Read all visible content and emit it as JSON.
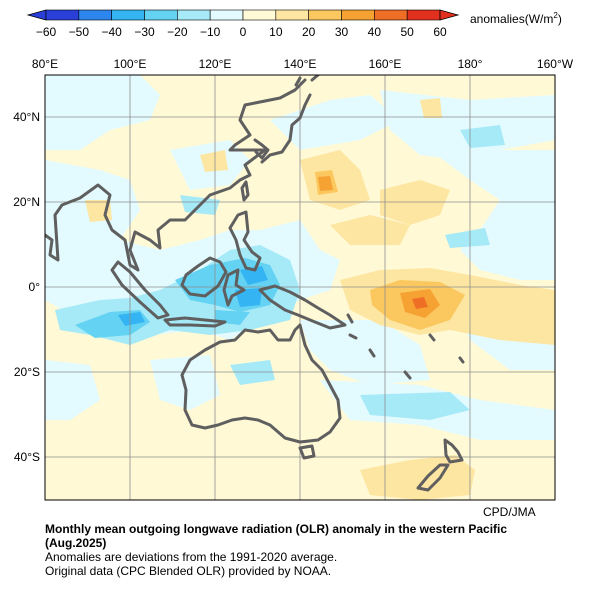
{
  "colorbar": {
    "ticks": [
      "−60",
      "−50",
      "−40",
      "−30",
      "−20",
      "−10",
      "0",
      "10",
      "20",
      "30",
      "40",
      "50",
      "60"
    ],
    "units_main": "anomalies(W/m",
    "units_sup": "2",
    "units_end": ")",
    "colors": [
      "#2a3fd8",
      "#2d86ee",
      "#34b4f2",
      "#64d2f2",
      "#a6e9f7",
      "#e3fbff",
      "#fff9d6",
      "#fde6a1",
      "#fbc85f",
      "#f6a233",
      "#ee6e25",
      "#e2301f"
    ]
  },
  "map": {
    "lon_labels": [
      "80°E",
      "100°E",
      "120°E",
      "140°E",
      "160°E",
      "180°",
      "160°W"
    ],
    "lat_labels": [
      "40°N",
      "20°N",
      "0°",
      "20°S",
      "40°S"
    ],
    "credit": "CPD/JMA",
    "coast_color": "#5f5f5f",
    "grid_color": "#8e8e8e",
    "land": {
      "australia": "Australia",
      "new_guinea": "New Guinea",
      "borneo": "Borneo",
      "sumatra": "Sumatra",
      "japan": "Japan",
      "new_zealand": "New Zealand",
      "asia": "Asia"
    }
  },
  "caption": {
    "title": "Monthly mean outgoing longwave radiation (OLR) anomaly in the western Pacific (Aug.2025)",
    "line1": "Anomalies are deviations from the 1991-2020 average.",
    "line2": "Original data (CPC Blended OLR) provided by NOAA."
  }
}
